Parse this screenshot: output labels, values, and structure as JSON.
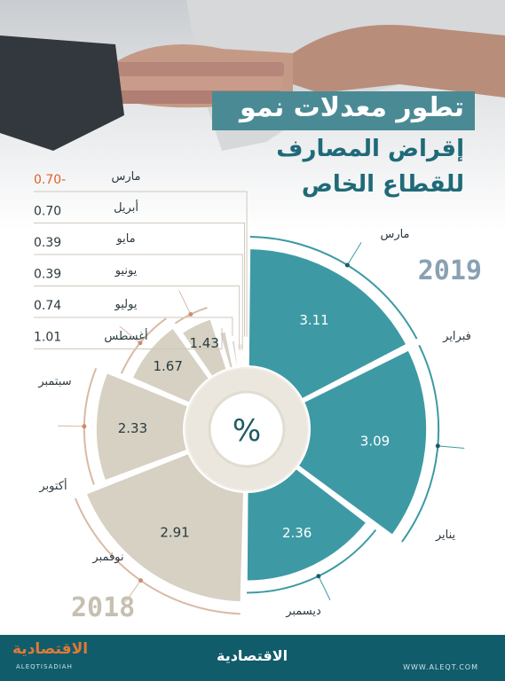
{
  "title": {
    "line1": "تطور معدلات نمو",
    "line2": "إقراض المصارف",
    "line3": "للقطاع الخاص"
  },
  "year_2019": "2019",
  "year_2018": "2018",
  "center_label": "%",
  "footer": {
    "logo": "الاقتصادية",
    "url": "WWW.ALEQT.COM",
    "left_mark": "الاقتصادية",
    "left_sub": "ALEQTISADIAH"
  },
  "colors": {
    "teal": "#3d9aa4",
    "beige": "#d6d1c2",
    "negative": "#e8612e",
    "text": "#2b3a40",
    "negative_text": "#e0602c",
    "leader": "#cfc9bc"
  },
  "chart_data": {
    "type": "pie",
    "center_label": "%",
    "years": [
      "2019",
      "2018"
    ],
    "categories": [
      "مارس",
      "فبراير",
      "يناير",
      "ديسمبر",
      "نوفمبر",
      "أكتوبر",
      "سبتمبر",
      "أغسطس",
      "يوليو",
      "يونيو",
      "مايو",
      "أبريل",
      "مارس"
    ],
    "values": [
      3.11,
      3.09,
      2.36,
      2.91,
      2.33,
      1.67,
      1.43,
      1.01,
      0.74,
      0.39,
      0.39,
      0.7,
      -0.7
    ],
    "value_labels": [
      "3.11",
      "3.09",
      "2.36",
      "2.91",
      "2.33",
      "1.67",
      "1.43",
      "1.01",
      "0.74",
      "0.39",
      "0.39",
      "0.70",
      "0.70-"
    ],
    "year_of_point": [
      "2019",
      "2019",
      "2019",
      "2018",
      "2018",
      "2018",
      "2018",
      "2018",
      "2018",
      "2018",
      "2018",
      "2018",
      "2018"
    ]
  }
}
